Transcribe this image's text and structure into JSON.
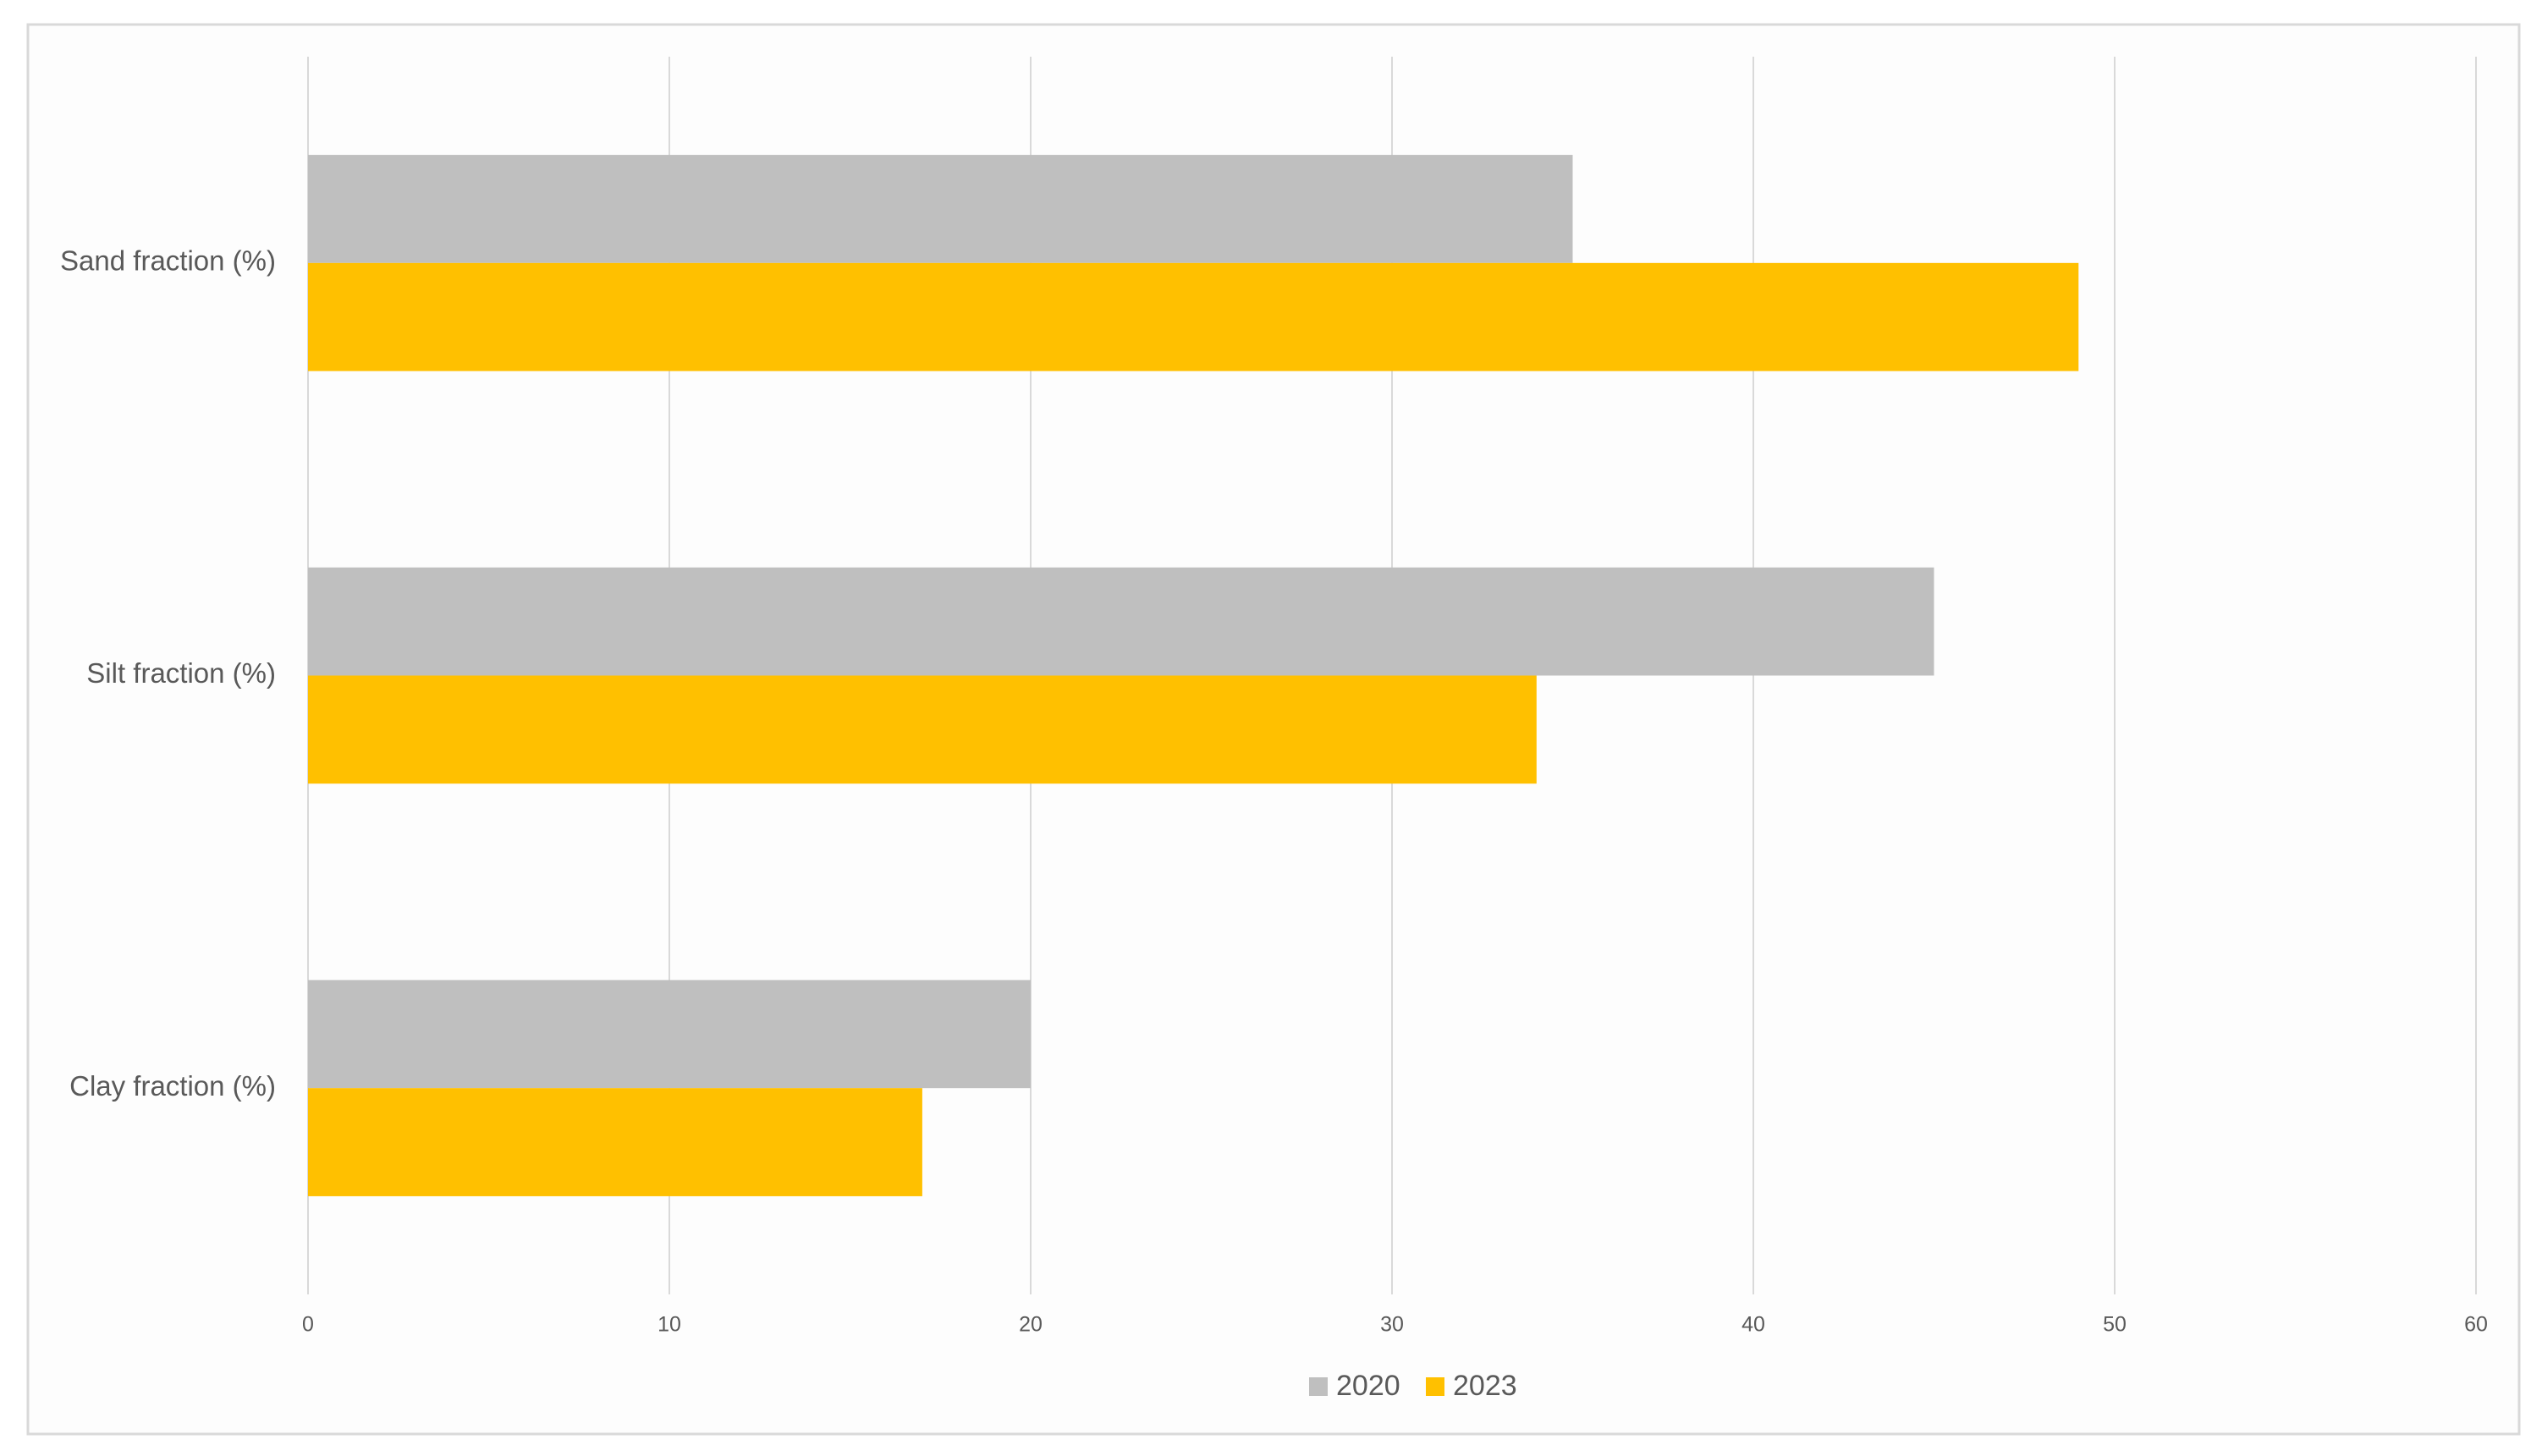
{
  "chart_data": {
    "type": "hbar",
    "categories": [
      "Sand fraction (%)",
      "Silt fraction (%)",
      "Clay fraction (%)"
    ],
    "series": [
      {
        "name": "2020",
        "color": "#bfbfbf",
        "values": [
          35,
          45,
          20
        ]
      },
      {
        "name": "2023",
        "color": "#ffc000",
        "values": [
          49,
          34,
          17
        ]
      }
    ],
    "xlim": [
      0,
      60
    ],
    "xticks": [
      0,
      10,
      20,
      30,
      40,
      50,
      60
    ],
    "grid": true,
    "legend": "bottom"
  }
}
